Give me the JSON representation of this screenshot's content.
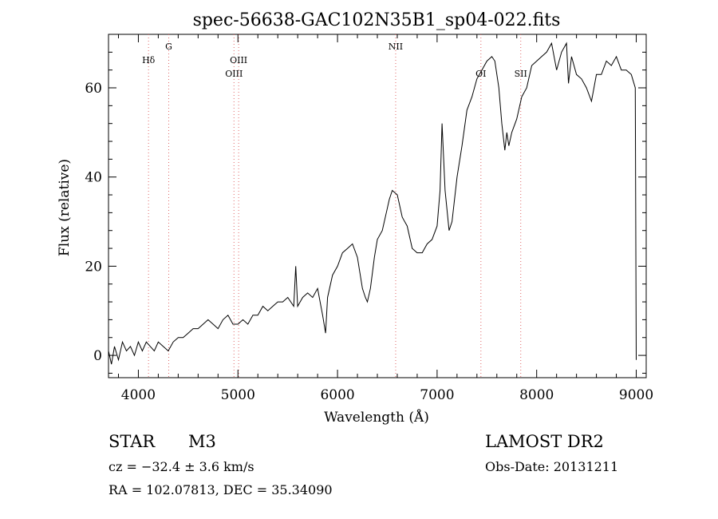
{
  "chart_data": {
    "type": "line",
    "title": "spec-56638-GAC102N35B1_sp04-022.fits",
    "xlabel": "Wavelength (Å)",
    "ylabel": "Flux (relative)",
    "xlim": [
      3700,
      9100
    ],
    "ylim": [
      -5,
      72
    ],
    "xticks": [
      4000,
      5000,
      6000,
      7000,
      8000,
      9000
    ],
    "xtick_labels": [
      "4000",
      "5000",
      "6000",
      "7000",
      "8000",
      "9000"
    ],
    "yticks": [
      0,
      20,
      40,
      60
    ],
    "ytick_labels": [
      "0",
      "20",
      "40",
      "60"
    ],
    "grid": false,
    "line_color": "#000000",
    "marker_color": "#e06666",
    "series": [
      {
        "x": [
          3700,
          3730,
          3760,
          3800,
          3840,
          3880,
          3920,
          3960,
          4000,
          4040,
          4080,
          4120,
          4160,
          4200,
          4250,
          4300,
          4350,
          4400,
          4450,
          4500,
          4550,
          4600,
          4650,
          4700,
          4750,
          4800,
          4850,
          4900,
          4950,
          5000,
          5050,
          5100,
          5150,
          5200,
          5250,
          5300,
          5350,
          5400,
          5450,
          5500,
          5560,
          5580,
          5600,
          5650,
          5700,
          5750,
          5800,
          5850,
          5880,
          5900,
          5950,
          6000,
          6050,
          6100,
          6150,
          6200,
          6250,
          6280,
          6300,
          6330,
          6370,
          6400,
          6450,
          6500,
          6520,
          6550,
          6600,
          6620,
          6650,
          6700,
          6750,
          6800,
          6850,
          6900,
          6950,
          7000,
          7030,
          7050,
          7080,
          7120,
          7150,
          7200,
          7250,
          7300,
          7350,
          7400,
          7450,
          7500,
          7550,
          7580,
          7620,
          7650,
          7680,
          7700,
          7720,
          7750,
          7800,
          7850,
          7900,
          7950,
          8000,
          8050,
          8100,
          8150,
          8200,
          8250,
          8300,
          8320,
          8350,
          8400,
          8450,
          8500,
          8550,
          8600,
          8650,
          8700,
          8750,
          8800,
          8850,
          8900,
          8950,
          8990,
          9000
        ],
        "y": [
          1,
          -2,
          2,
          -1,
          3,
          1,
          2,
          0,
          3,
          1,
          3,
          2,
          1,
          3,
          2,
          1,
          3,
          4,
          4,
          5,
          6,
          6,
          7,
          8,
          7,
          6,
          8,
          9,
          7,
          7,
          8,
          7,
          9,
          9,
          11,
          10,
          11,
          12,
          12,
          13,
          11,
          20,
          11,
          13,
          14,
          13,
          15,
          9,
          5,
          13,
          18,
          20,
          23,
          24,
          25,
          22,
          15,
          13,
          12,
          15,
          22,
          26,
          28,
          33,
          35,
          37,
          36,
          34,
          31,
          29,
          24,
          23,
          23,
          25,
          26,
          29,
          37,
          52,
          37,
          28,
          30,
          40,
          47,
          55,
          58,
          62,
          64,
          66,
          67,
          66,
          60,
          52,
          46,
          50,
          47,
          50,
          53,
          58,
          60,
          65,
          66,
          67,
          68,
          70,
          64,
          68,
          70,
          61,
          67,
          63,
          62,
          60,
          57,
          63,
          63,
          66,
          65,
          67,
          64,
          64,
          63,
          60,
          -1
        ]
      }
    ],
    "lines": [
      {
        "label": "Hδ",
        "x": 4102,
        "row": 1
      },
      {
        "label": "G",
        "x": 4305,
        "row": 0
      },
      {
        "label": "OIII",
        "x": 4960,
        "row": 2
      },
      {
        "label": "OIII",
        "x": 5007,
        "row": 1
      },
      {
        "label": "NII",
        "x": 6584,
        "row": 0
      },
      {
        "label": "OI",
        "x": 7440,
        "row": 2
      },
      {
        "label": "SII",
        "x": 7840,
        "row": 2
      }
    ]
  },
  "footer": {
    "object_class": "STAR",
    "subclass": "M3",
    "survey": "LAMOST DR2",
    "redshift": "cz = −32.4 ± 3.6 km/s",
    "obs_date": "Obs-Date: 20131211",
    "coords": "RA = 102.07813, DEC =  35.34090"
  }
}
